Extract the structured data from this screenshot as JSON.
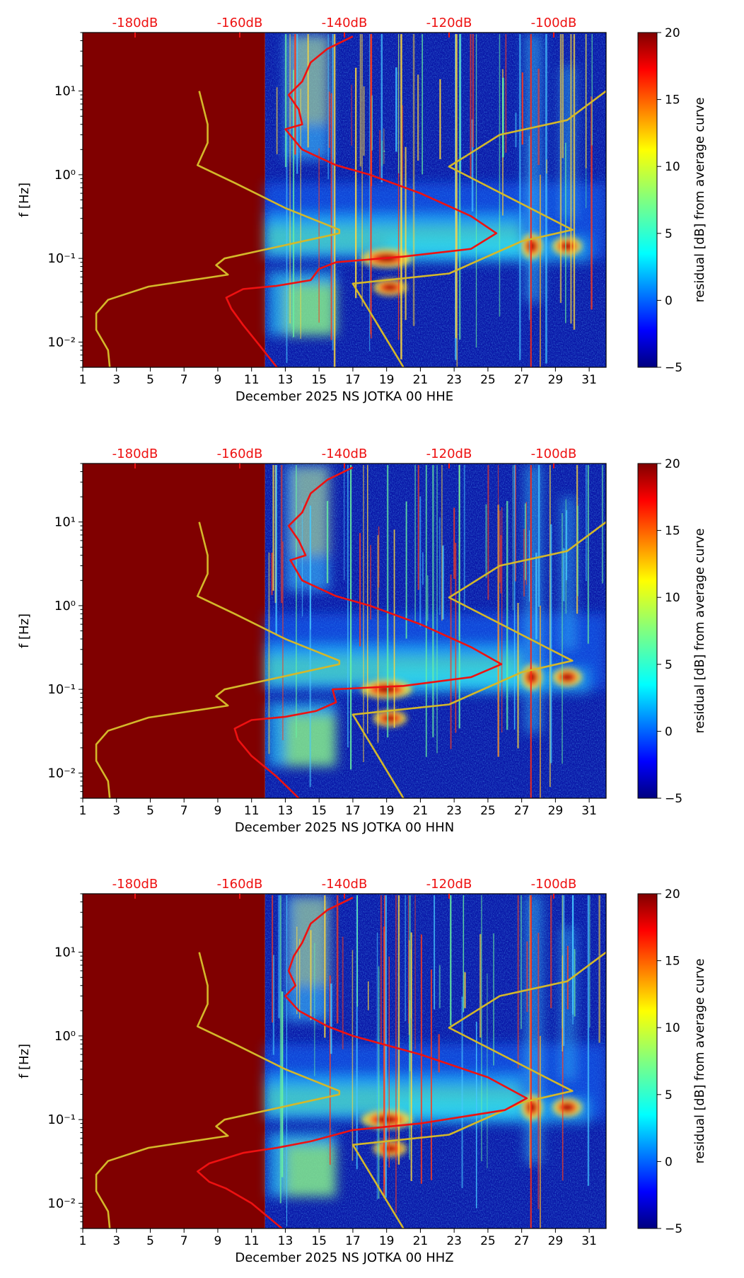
{
  "figure": {
    "colors": {
      "dead_fill": "#800000",
      "psd_curve": "#ee1111",
      "model_curve": "#d4b82a",
      "top_axis": "#ee1111",
      "axis": "#000000"
    },
    "icon_names": [
      "spectrogram-panel",
      "colorbar"
    ]
  },
  "chart_data": [
    {
      "type": "heatmap",
      "channel": "HHE",
      "xlabel": "December 2025 NS JOTKA 00 HHE",
      "ylabel": "f [Hz]",
      "xlim": [
        1,
        32
      ],
      "ylim": [
        0.005,
        50
      ],
      "yscale": "log",
      "xticks": [
        "1",
        "3",
        "5",
        "7",
        "9",
        "11",
        "13",
        "15",
        "17",
        "19",
        "21",
        "23",
        "25",
        "27",
        "29",
        "31"
      ],
      "yticks": [
        {
          "value": 0.01,
          "label": "10⁻²"
        },
        {
          "value": 0.1,
          "label": "10⁻¹"
        },
        {
          "value": 1,
          "label": "10⁰"
        },
        {
          "value": 10,
          "label": "10¹"
        }
      ],
      "top_axis": {
        "labels": [
          "-180dB",
          "-160dB",
          "-140dB",
          "-120dB",
          "-100dB"
        ],
        "values_x": [
          4.1,
          10.3,
          16.5,
          22.7,
          28.9
        ]
      },
      "colorbar": {
        "label": "residual [dB] from average curve",
        "range": [
          -5,
          20
        ],
        "ticks": [
          "-5",
          "0",
          "5",
          "10",
          "15",
          "20"
        ]
      },
      "data_start_day": 11.8,
      "psd_curve": [
        [
          12.5,
          0.005
        ],
        [
          11.5,
          0.009
        ],
        [
          10.5,
          0.016
        ],
        [
          9.8,
          0.025
        ],
        [
          9.5,
          0.034
        ],
        [
          10.5,
          0.043
        ],
        [
          12.5,
          0.047
        ],
        [
          14.5,
          0.055
        ],
        [
          15,
          0.075
        ],
        [
          16,
          0.09
        ],
        [
          20,
          0.105
        ],
        [
          24,
          0.13
        ],
        [
          25.5,
          0.2
        ],
        [
          24,
          0.32
        ],
        [
          21,
          0.6
        ],
        [
          18,
          1.0
        ],
        [
          16,
          1.3
        ],
        [
          14,
          2
        ],
        [
          13,
          3.5
        ],
        [
          14,
          4
        ],
        [
          13.8,
          6
        ],
        [
          13.2,
          9
        ],
        [
          14,
          13
        ],
        [
          14.5,
          22
        ],
        [
          15.5,
          32
        ],
        [
          17,
          45
        ]
      ],
      "model_curve_low": [
        [
          2.6,
          0.005
        ],
        [
          2.5,
          0.008
        ],
        [
          1.8,
          0.014
        ],
        [
          1.8,
          0.022
        ],
        [
          2.5,
          0.032
        ],
        [
          4.9,
          0.046
        ],
        [
          9.6,
          0.064
        ],
        [
          8.9,
          0.083
        ],
        [
          9.4,
          0.1
        ],
        [
          16.2,
          0.2
        ],
        [
          16.2,
          0.22
        ],
        [
          13,
          0.4
        ],
        [
          10,
          0.8
        ],
        [
          7.8,
          1.3
        ],
        [
          8.4,
          2.4
        ],
        [
          8.4,
          4
        ],
        [
          7.9,
          10
        ]
      ],
      "model_curve_high": [
        [
          20,
          0.005
        ],
        [
          17,
          0.05
        ],
        [
          22.7,
          0.066
        ],
        [
          27,
          0.16
        ],
        [
          30,
          0.22
        ],
        [
          22.7,
          1.25
        ],
        [
          25.7,
          3
        ],
        [
          29.7,
          4.5
        ],
        [
          32,
          10
        ]
      ]
    },
    {
      "type": "heatmap",
      "channel": "HHN",
      "xlabel": "December 2025 NS JOTKA 00 HHN",
      "ylabel": "f [Hz]",
      "xlim": [
        1,
        32
      ],
      "ylim": [
        0.005,
        50
      ],
      "yscale": "log",
      "xticks": [
        "1",
        "3",
        "5",
        "7",
        "9",
        "11",
        "13",
        "15",
        "17",
        "19",
        "21",
        "23",
        "25",
        "27",
        "29",
        "31"
      ],
      "yticks": [
        {
          "value": 0.01,
          "label": "10⁻²"
        },
        {
          "value": 0.1,
          "label": "10⁻¹"
        },
        {
          "value": 1,
          "label": "10⁰"
        },
        {
          "value": 10,
          "label": "10¹"
        }
      ],
      "top_axis": {
        "labels": [
          "-180dB",
          "-160dB",
          "-140dB",
          "-120dB",
          "-100dB"
        ],
        "values_x": [
          4.1,
          10.3,
          16.5,
          22.7,
          28.9
        ]
      },
      "colorbar": {
        "label": "residual [dB] from average curve",
        "range": [
          -5,
          20
        ],
        "ticks": [
          "-5",
          "0",
          "5",
          "10",
          "15",
          "20"
        ]
      },
      "data_start_day": 11.8,
      "psd_curve": [
        [
          13.8,
          0.005
        ],
        [
          12.5,
          0.009
        ],
        [
          11,
          0.016
        ],
        [
          10.2,
          0.025
        ],
        [
          10,
          0.034
        ],
        [
          11,
          0.043
        ],
        [
          13,
          0.047
        ],
        [
          14.8,
          0.055
        ],
        [
          16,
          0.07
        ],
        [
          15.8,
          0.1
        ],
        [
          20,
          0.11
        ],
        [
          24,
          0.14
        ],
        [
          25.8,
          0.2
        ],
        [
          24,
          0.32
        ],
        [
          21,
          0.6
        ],
        [
          18,
          1.0
        ],
        [
          16,
          1.3
        ],
        [
          14,
          2
        ],
        [
          13.3,
          3.5
        ],
        [
          14.2,
          4
        ],
        [
          13.8,
          6
        ],
        [
          13.2,
          9
        ],
        [
          14,
          13
        ],
        [
          14.5,
          22
        ],
        [
          15.5,
          32
        ],
        [
          17,
          45
        ]
      ],
      "model_curve_low": [
        [
          2.6,
          0.005
        ],
        [
          2.5,
          0.008
        ],
        [
          1.8,
          0.014
        ],
        [
          1.8,
          0.022
        ],
        [
          2.5,
          0.032
        ],
        [
          4.9,
          0.046
        ],
        [
          9.6,
          0.064
        ],
        [
          8.9,
          0.083
        ],
        [
          9.4,
          0.1
        ],
        [
          16.2,
          0.2
        ],
        [
          16.2,
          0.22
        ],
        [
          13,
          0.4
        ],
        [
          10,
          0.8
        ],
        [
          7.8,
          1.3
        ],
        [
          8.4,
          2.4
        ],
        [
          8.4,
          4
        ],
        [
          7.9,
          10
        ]
      ],
      "model_curve_high": [
        [
          20,
          0.005
        ],
        [
          17,
          0.05
        ],
        [
          22.7,
          0.066
        ],
        [
          27,
          0.16
        ],
        [
          30,
          0.22
        ],
        [
          22.7,
          1.25
        ],
        [
          25.7,
          3
        ],
        [
          29.7,
          4.5
        ],
        [
          32,
          10
        ]
      ]
    },
    {
      "type": "heatmap",
      "channel": "HHZ",
      "xlabel": "December 2025 NS JOTKA 00 HHZ",
      "ylabel": "f [Hz]",
      "xlim": [
        1,
        32
      ],
      "ylim": [
        0.005,
        50
      ],
      "yscale": "log",
      "xticks": [
        "1",
        "3",
        "5",
        "7",
        "9",
        "11",
        "13",
        "15",
        "17",
        "19",
        "21",
        "23",
        "25",
        "27",
        "29",
        "31"
      ],
      "yticks": [
        {
          "value": 0.01,
          "label": "10⁻²"
        },
        {
          "value": 0.1,
          "label": "10⁻¹"
        },
        {
          "value": 1,
          "label": "10⁰"
        },
        {
          "value": 10,
          "label": "10¹"
        }
      ],
      "top_axis": {
        "labels": [
          "-180dB",
          "-160dB",
          "-140dB",
          "-120dB",
          "-100dB"
        ],
        "values_x": [
          4.1,
          10.3,
          16.5,
          22.7,
          28.9
        ]
      },
      "colorbar": {
        "label": "residual [dB] from average curve",
        "range": [
          -5,
          20
        ],
        "ticks": [
          "-5",
          "0",
          "5",
          "10",
          "15",
          "20"
        ]
      },
      "data_start_day": 11.8,
      "psd_curve": [
        [
          12.8,
          0.005
        ],
        [
          11,
          0.01
        ],
        [
          9.5,
          0.015
        ],
        [
          8.5,
          0.018
        ],
        [
          7.8,
          0.024
        ],
        [
          8.5,
          0.03
        ],
        [
          10.5,
          0.04
        ],
        [
          12.5,
          0.046
        ],
        [
          14.5,
          0.055
        ],
        [
          17,
          0.075
        ],
        [
          21,
          0.09
        ],
        [
          26,
          0.13
        ],
        [
          27.3,
          0.18
        ],
        [
          25,
          0.32
        ],
        [
          21,
          0.6
        ],
        [
          17,
          1.0
        ],
        [
          15.5,
          1.3
        ],
        [
          13.8,
          2
        ],
        [
          13,
          3
        ],
        [
          13.6,
          4
        ],
        [
          13.2,
          6
        ],
        [
          13.5,
          9
        ],
        [
          14,
          13
        ],
        [
          14.5,
          22
        ],
        [
          15.5,
          32
        ],
        [
          17,
          45
        ]
      ],
      "model_curve_low": [
        [
          2.6,
          0.005
        ],
        [
          2.5,
          0.008
        ],
        [
          1.8,
          0.014
        ],
        [
          1.8,
          0.022
        ],
        [
          2.5,
          0.032
        ],
        [
          4.9,
          0.046
        ],
        [
          9.6,
          0.064
        ],
        [
          8.9,
          0.083
        ],
        [
          9.4,
          0.1
        ],
        [
          16.2,
          0.2
        ],
        [
          16.2,
          0.22
        ],
        [
          13,
          0.4
        ],
        [
          10,
          0.8
        ],
        [
          7.8,
          1.3
        ],
        [
          8.4,
          2.4
        ],
        [
          8.4,
          4
        ],
        [
          7.9,
          10
        ]
      ],
      "model_curve_high": [
        [
          20,
          0.005
        ],
        [
          17,
          0.05
        ],
        [
          22.7,
          0.066
        ],
        [
          27,
          0.16
        ],
        [
          30,
          0.22
        ],
        [
          22.7,
          1.25
        ],
        [
          25.7,
          3
        ],
        [
          29.7,
          4.5
        ],
        [
          32,
          10
        ]
      ]
    }
  ]
}
